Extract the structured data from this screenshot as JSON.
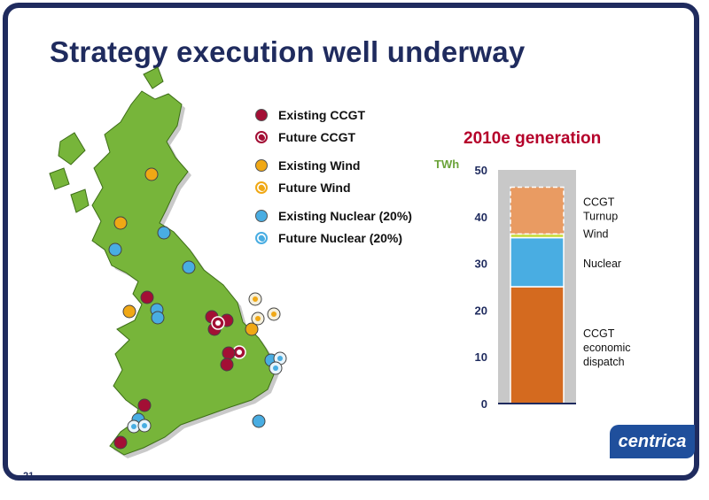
{
  "title": "Strategy execution well underway",
  "page_number": "21",
  "logo_text": "centrica",
  "legend": [
    {
      "label": "Existing CCGT",
      "color": "#a30f35",
      "future": false
    },
    {
      "label": "Future CCGT",
      "color": "#a30f35",
      "future": true
    },
    {
      "label": "Existing Wind",
      "color": "#f0a815",
      "future": false
    },
    {
      "label": "Future Wind",
      "color": "#f0a815",
      "future": true
    },
    {
      "label": "Existing Nuclear (20%)",
      "color": "#49ade2",
      "future": false
    },
    {
      "label": "Future Nuclear (20%)",
      "color": "#49ade2",
      "future": true
    }
  ],
  "colors": {
    "map_land": "#77b53a",
    "ccgt_economic": "#d46a1f",
    "nuclear": "#49ade2",
    "wind": "#c8dc3c",
    "ccgt_turnup": "#e99b62",
    "chart_bg": "#c8c8c8",
    "axis_title": "#b5002a"
  },
  "chart_data": {
    "type": "bar",
    "stacked": true,
    "title": "2010e generation",
    "ylabel": "TWh",
    "ylim": [
      0,
      50
    ],
    "yticks": [
      0,
      10,
      20,
      30,
      40,
      50
    ],
    "categories": [
      ""
    ],
    "series": [
      {
        "name": "CCGT economic dispatch",
        "values": [
          25
        ]
      },
      {
        "name": "Nuclear",
        "values": [
          10.5
        ]
      },
      {
        "name": "Wind",
        "values": [
          0.8
        ]
      },
      {
        "name": "CCGT Turnup",
        "values": [
          10
        ]
      }
    ]
  }
}
